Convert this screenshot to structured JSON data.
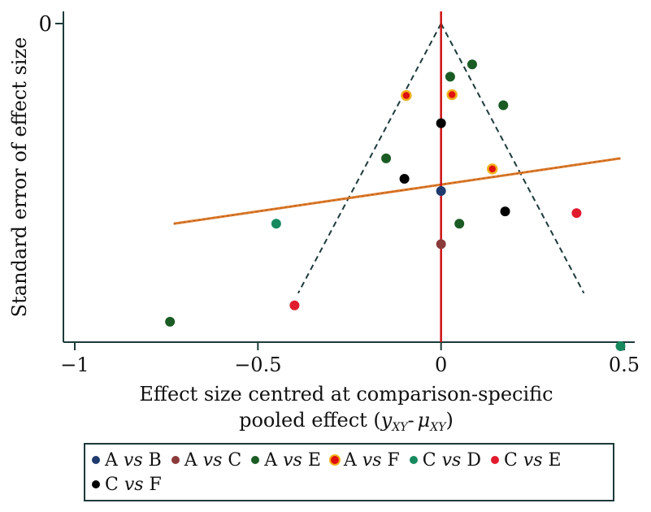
{
  "chart_data": {
    "type": "scatter",
    "ylabel": "Standard error of effect size",
    "xlabel_line1": "Effect size centred at comparison-specific",
    "xlabel_line2_prefix": "pooled effect (",
    "xlabel_line2_y": "y",
    "xlabel_line2_y_sub": "XY",
    "xlabel_line2_dash": "-",
    "xlabel_line2_mu": "μ",
    "xlabel_line2_mu_sub": "XY",
    "xlabel_line2_suffix": ")",
    "xlim": [
      -1.02,
      0.52
    ],
    "ylim": [
      0,
      0.39
    ],
    "y_reversed": true,
    "x_ticks": [
      -1,
      -0.5,
      0,
      0.5
    ],
    "x_tick_labels": [
      "−1",
      "−0.5",
      "0",
      "0.5"
    ],
    "y_ticks": [
      0
    ],
    "y_tick_labels": [
      "0"
    ],
    "grid": false,
    "legend_position": "bottom",
    "reference_line": {
      "x": 0,
      "color": "#cc1111"
    },
    "funnel": {
      "apex": [
        0,
        0
      ],
      "left_end": [
        -0.39,
        0.33
      ],
      "right_end": [
        0.39,
        0.33
      ],
      "color": "#1d3a3a"
    },
    "regression_line": {
      "x": [
        -0.73,
        0.49
      ],
      "y": [
        0.245,
        0.165
      ],
      "color": "#e07b2b"
    },
    "series": [
      {
        "name": "A",
        "vs": "vs",
        "name2": "B",
        "color": "#1f3a6e",
        "ring": "#1f3a6e",
        "points": [
          [
            0,
            0.205
          ]
        ]
      },
      {
        "name": "A",
        "vs": "vs",
        "name2": "C",
        "color": "#8b3a3a",
        "ring": "#8b3a3a",
        "points": [
          [
            0,
            0.27
          ]
        ]
      },
      {
        "name": "A",
        "vs": "vs",
        "name2": "E",
        "color": "#1a5c24",
        "ring": "#1a5c24",
        "points": [
          [
            0.085,
            0.05
          ],
          [
            0.025,
            0.065
          ],
          [
            0.17,
            0.1
          ],
          [
            -0.15,
            0.165
          ],
          [
            0.05,
            0.245
          ],
          [
            -0.74,
            0.365
          ]
        ]
      },
      {
        "name": "A",
        "vs": "vs",
        "name2": "F",
        "color": "#e01010",
        "ring": "#f2b21c",
        "points": [
          [
            -0.095,
            0.088
          ],
          [
            0.03,
            0.087
          ],
          [
            0.14,
            0.178
          ]
        ]
      },
      {
        "name": "C",
        "vs": "vs",
        "name2": "D",
        "color": "#17895f",
        "ring": "#17895f",
        "points": [
          [
            -0.45,
            0.245
          ],
          [
            0.49,
            0.395
          ]
        ]
      },
      {
        "name": "C",
        "vs": "vs",
        "name2": "E",
        "color": "#e01c2e",
        "ring": "#e01c2e",
        "points": [
          [
            -0.4,
            0.345
          ],
          [
            0.37,
            0.232
          ]
        ]
      },
      {
        "name": "C",
        "vs": "vs",
        "name2": "F",
        "color": "#000000",
        "ring": "#000000",
        "points": [
          [
            0,
            0.122
          ],
          [
            -0.1,
            0.19
          ],
          [
            0.175,
            0.23
          ]
        ]
      }
    ]
  }
}
